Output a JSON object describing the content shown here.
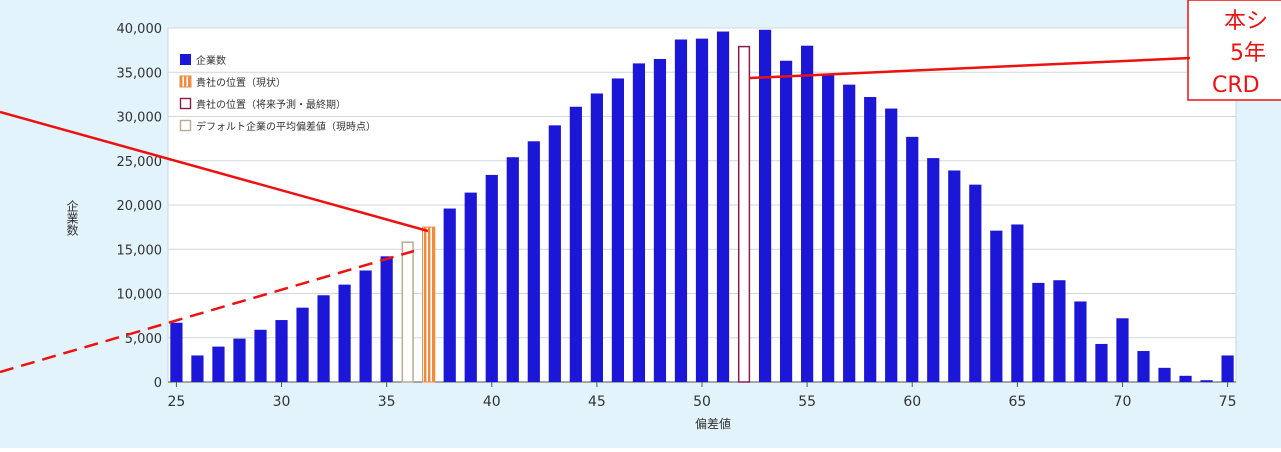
{
  "chart_data": {
    "type": "bar",
    "x": [
      25,
      26,
      27,
      28,
      29,
      30,
      31,
      32,
      33,
      34,
      35,
      36,
      37,
      38,
      39,
      40,
      41,
      42,
      43,
      44,
      45,
      46,
      47,
      48,
      49,
      50,
      51,
      52,
      53,
      54,
      55,
      56,
      57,
      58,
      59,
      60,
      61,
      62,
      63,
      64,
      65,
      66,
      67,
      68,
      69,
      70,
      71,
      72,
      73,
      74,
      75
    ],
    "values": [
      6700,
      3000,
      4000,
      4900,
      5900,
      7000,
      8400,
      9800,
      11000,
      12600,
      14200,
      15800,
      17500,
      19600,
      21400,
      23400,
      25400,
      27200,
      29000,
      31100,
      32600,
      34300,
      36000,
      36500,
      38700,
      38800,
      39600,
      37900,
      39800,
      36300,
      38000,
      34700,
      33600,
      32200,
      30900,
      27700,
      25300,
      23900,
      22300,
      17100,
      17800,
      11200,
      11500,
      9100,
      4300,
      7200,
      3500,
      1600,
      700,
      200,
      3000
    ],
    "highlights": [
      {
        "x": 36,
        "value": 15800,
        "series": 3
      },
      {
        "x": 37,
        "value": 17500,
        "series": 1
      },
      {
        "x": 52,
        "value": 37900,
        "series": 2
      }
    ],
    "xticks": [
      25,
      30,
      35,
      40,
      45,
      50,
      55,
      60,
      65,
      70,
      75
    ],
    "yticks": [
      0,
      5000,
      10000,
      15000,
      20000,
      25000,
      30000,
      35000,
      40000
    ],
    "ytick_labels": [
      "0",
      "5,000",
      "10,000",
      "15,000",
      "20,000",
      "25,000",
      "30,000",
      "35,000",
      "40,000"
    ],
    "xlim": [
      24.6,
      75.4
    ],
    "ylim": [
      0,
      40000
    ],
    "xlabel": "偏差値",
    "ylabel": "企業数",
    "grid": "horizontal",
    "legend_position": "top-left",
    "legend": [
      {
        "label": "企業数",
        "color": "#1c17d6",
        "style": "solid"
      },
      {
        "label": "貴社の位置（現状）",
        "color": "#f08a3c",
        "style": "striped"
      },
      {
        "label": "貴社の位置（将来予測・最終期）",
        "color": "#8a1c4c",
        "style": "outline"
      },
      {
        "label": "デフォルト企業の平均偏差値（現時点）",
        "color": "#b8ab92",
        "style": "outline"
      }
    ],
    "colors": {
      "bar": "#1c17d6",
      "current": "#f08a3c",
      "future": "#8a1c4c",
      "default_avg": "#b8ab92",
      "plot_bg": "#ffffff",
      "panel_bg": "#e3f3fb",
      "annotation": "#ee1111"
    }
  },
  "annotation": {
    "lines": [
      "本シ",
      "5年",
      "CRD"
    ]
  }
}
